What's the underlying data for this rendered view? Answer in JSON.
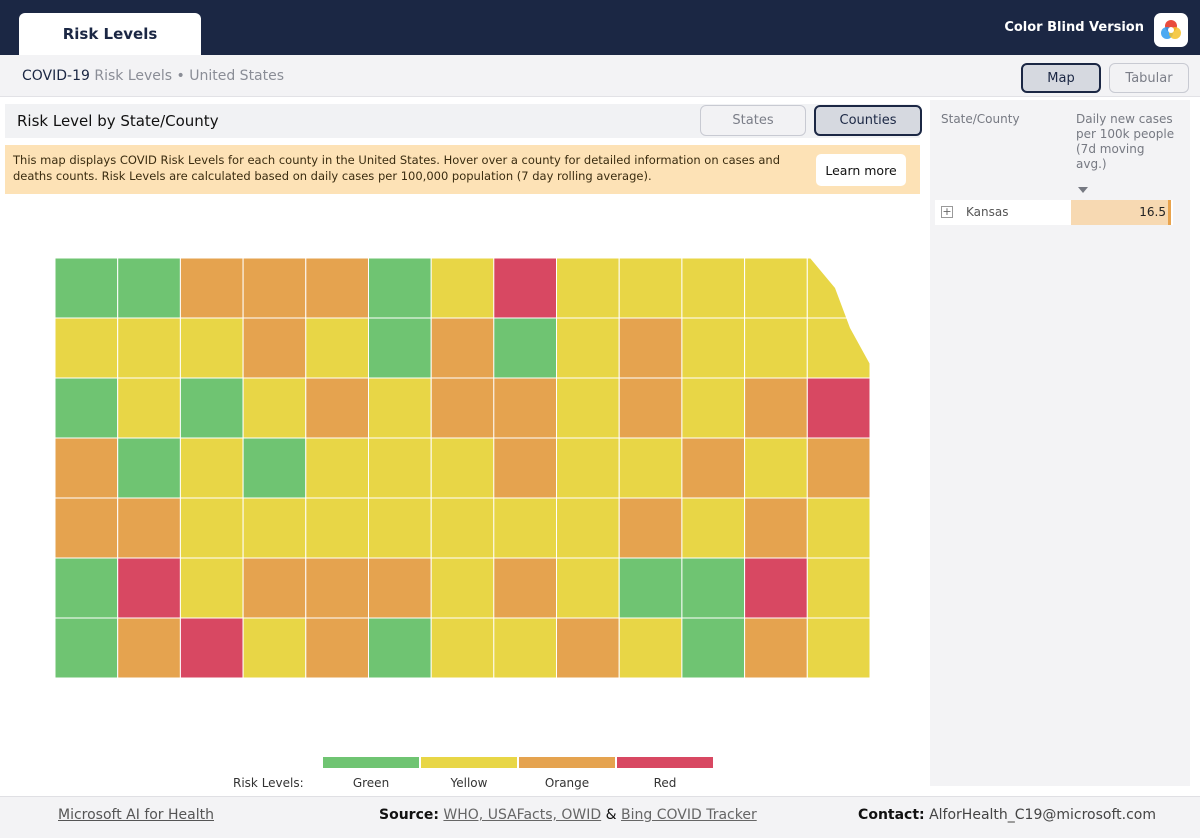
{
  "header": {
    "tab_label": "Risk Levels",
    "color_blind_label": "Color Blind Version"
  },
  "subheader": {
    "app_name": "COVID-19",
    "crumb": "Risk Levels • United States",
    "map_button": "Map",
    "tabular_button": "Tabular"
  },
  "panel": {
    "title": "Risk Level by State/County",
    "states_button": "States",
    "counties_button": "Counties"
  },
  "info": {
    "text": "This map displays COVID Risk Levels for each county in the United States. Hover over a county for detailed information on cases and deaths counts. Risk Levels are calculated based on daily cases per 100,000 population (7 day rolling average).",
    "learn_more": "Learn more"
  },
  "legend": {
    "title": "Risk Levels:",
    "items": [
      {
        "label": "Green",
        "color": "#6fc472"
      },
      {
        "label": "Yellow",
        "color": "#e8d646"
      },
      {
        "label": "Orange",
        "color": "#e5a34f"
      },
      {
        "label": "Red",
        "color": "#d84862"
      }
    ]
  },
  "colors": {
    "green": "#6fc472",
    "yellow": "#e8d646",
    "orange": "#e5a34f",
    "red": "#d84862",
    "navy": "#1b2744"
  },
  "map": {
    "region": "Kansas",
    "counties": [
      [
        "G",
        "G",
        "O",
        "O",
        "O",
        "G",
        "Y",
        "R",
        "Y",
        "Y",
        "Y",
        "Y",
        "Y"
      ],
      [
        "Y",
        "Y",
        "Y",
        "O",
        "Y",
        "G",
        "O",
        "G",
        "Y",
        "O",
        "Y",
        "Y",
        "Y"
      ],
      [
        "G",
        "Y",
        "G",
        "Y",
        "O",
        "Y",
        "O",
        "O",
        "Y",
        "O",
        "Y",
        "O",
        "R"
      ],
      [
        "O",
        "G",
        "Y",
        "G",
        "Y",
        "Y",
        "Y",
        "O",
        "Y",
        "Y",
        "O",
        "Y",
        "O"
      ],
      [
        "O",
        "O",
        "Y",
        "Y",
        "Y",
        "Y",
        "Y",
        "Y",
        "Y",
        "O",
        "Y",
        "O",
        "Y"
      ],
      [
        "G",
        "R",
        "Y",
        "O",
        "O",
        "O",
        "Y",
        "O",
        "Y",
        "G",
        "G",
        "R",
        "Y"
      ],
      [
        "G",
        "O",
        "R",
        "Y",
        "O",
        "G",
        "Y",
        "Y",
        "O",
        "Y",
        "G",
        "O",
        "Y"
      ]
    ]
  },
  "sidebar": {
    "col1": "State/County",
    "col2": "Daily new cases per 100k people (7d moving avg.)",
    "rows": [
      {
        "expand": "+",
        "label": "Kansas",
        "value": "16.5"
      }
    ]
  },
  "footer": {
    "left": "Microsoft AI for Health",
    "source_label": "Source:",
    "source_links": "WHO, USAFacts, OWID",
    "amp": "&",
    "bing": "Bing COVID Tracker",
    "contact_label": "Contact:",
    "contact_value": "AlforHealth_C19@microsoft.com"
  }
}
